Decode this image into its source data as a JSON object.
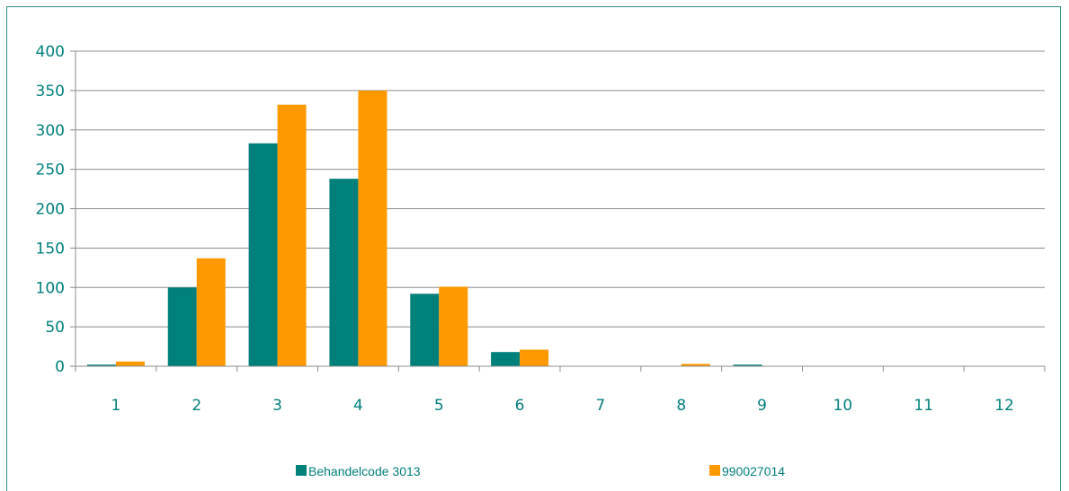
{
  "chart_data": {
    "type": "bar",
    "categories": [
      "1",
      "2",
      "3",
      "4",
      "5",
      "6",
      "7",
      "8",
      "9",
      "10",
      "11",
      "12"
    ],
    "series": [
      {
        "name": "Behandelcode 3013",
        "color": "#00807a",
        "values": [
          2,
          100,
          283,
          238,
          92,
          18,
          0,
          0,
          2,
          0,
          0,
          0
        ]
      },
      {
        "name": "990027014",
        "color": "#ff9900",
        "values": [
          6,
          137,
          332,
          350,
          101,
          21,
          0,
          3,
          0,
          0,
          0,
          0
        ]
      }
    ],
    "yticks": [
      "0",
      "50",
      "100",
      "150",
      "200",
      "250",
      "300",
      "350",
      "400"
    ],
    "ylim": [
      0,
      400
    ],
    "grid": true,
    "legend": "bottom"
  }
}
